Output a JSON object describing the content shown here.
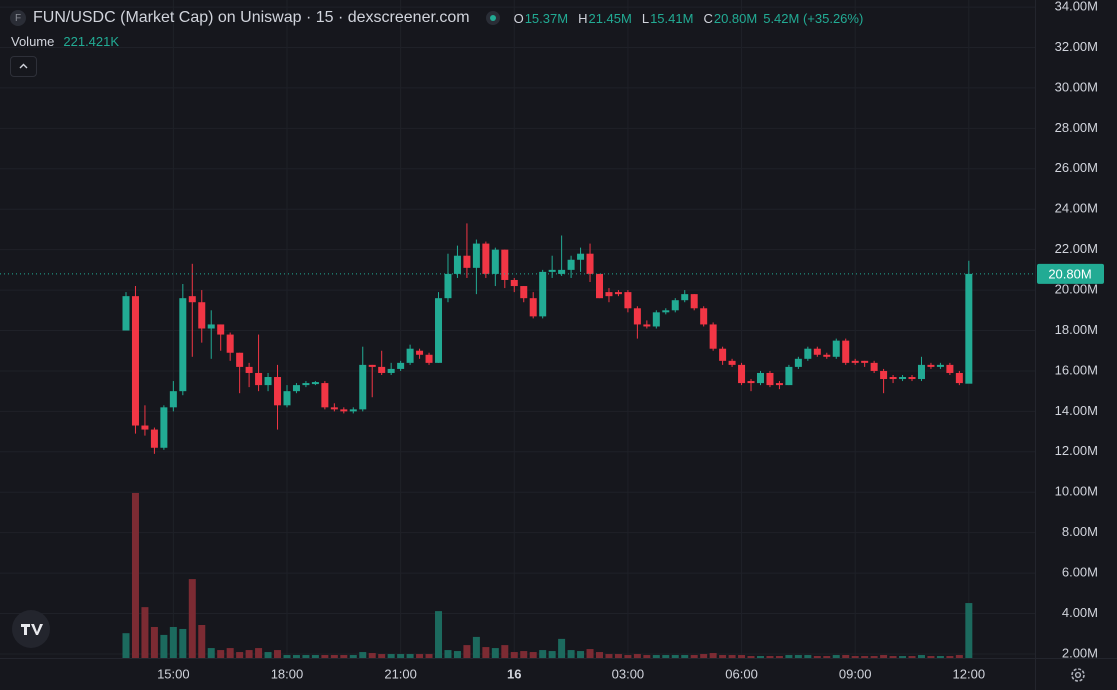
{
  "header": {
    "icon_letter": "F",
    "title": "FUN/USDC (Market Cap) on Uniswap · 15 · dexscreener.com",
    "stats": [
      {
        "label": "O",
        "value": "15.37M"
      },
      {
        "label": "H",
        "value": "21.45M"
      },
      {
        "label": "L",
        "value": "15.41M"
      },
      {
        "label": "C",
        "value": "20.80M"
      }
    ],
    "change": "5.42M (+35.26%)",
    "volume_label": "Volume",
    "volume_value": "221.421K"
  },
  "chart_data": {
    "type": "candlestick",
    "categories": [
      null,
      null,
      null,
      null,
      null,
      "15:00",
      null,
      null,
      null,
      null,
      null,
      null,
      null,
      null,
      null,
      null,
      null,
      "18:00",
      null,
      null,
      null,
      null,
      null,
      null,
      null,
      null,
      null,
      null,
      null,
      "21:00",
      null,
      null,
      null,
      null,
      null,
      null,
      null,
      null,
      null,
      null,
      null,
      "16",
      null,
      null,
      null,
      null,
      null,
      null,
      null,
      null,
      null,
      null,
      null,
      "03:00",
      null,
      null,
      null,
      null,
      null,
      null,
      null,
      null,
      null,
      null,
      null,
      "06:00",
      null,
      null,
      null,
      null,
      null,
      null,
      null,
      null,
      null,
      null,
      null,
      "09:00",
      null,
      null,
      null,
      null,
      null,
      null,
      null,
      null,
      null,
      null,
      null,
      "12:00"
    ],
    "open": [
      18000000.0,
      19700000.0,
      13300000.0,
      13100000.0,
      12200000.0,
      14200000.0,
      15000000.0,
      19700000.0,
      19400000.0,
      18100000.0,
      18300000.0,
      17800000.0,
      16900000.0,
      16200000.0,
      15900000.0,
      15300000.0,
      15700000.0,
      14300000.0,
      15000000.0,
      15300000.0,
      15350000.0,
      15400000.0,
      14200000.0,
      14100000.0,
      14000000.0,
      14100000.0,
      16300000.0,
      16200000.0,
      15900000.0,
      16100000.0,
      16400000.0,
      17000000.0,
      16800000.0,
      16400000.0,
      19600000.0,
      20800000.0,
      21700000.0,
      21100000.0,
      22300000.0,
      20800000.0,
      22000000.0,
      20500000.0,
      20200000.0,
      19600000.0,
      18700000.0,
      20900000.0,
      20800000.0,
      21000000.0,
      21500000.0,
      21800000.0,
      20800000.0,
      19900000.0,
      19900000.0,
      19900000.0,
      19100000.0,
      18300000.0,
      18200000.0,
      18900000.0,
      19000000.0,
      19500000.0,
      19800000.0,
      19100000.0,
      18300000.0,
      17100000.0,
      16500000.0,
      16300000.0,
      15500000.0,
      15400000.0,
      15900000.0,
      15400000.0,
      15300000.0,
      16200000.0,
      16600000.0,
      17100000.0,
      16800000.0,
      16700000.0,
      17500000.0,
      16500000.0,
      16500000.0,
      16400000.0,
      16000000.0,
      15700000.0,
      15600000.0,
      15700000.0,
      15600000.0,
      16300000.0,
      16200000.0,
      16300000.0,
      15900000.0,
      15370000.0
    ],
    "high": [
      19900000.0,
      20200000.0,
      14300000.0,
      13200000.0,
      14300000.0,
      15500000.0,
      20300000.0,
      21300000.0,
      20000000.0,
      19000000.0,
      18300000.0,
      17900000.0,
      16900000.0,
      16400000.0,
      17800000.0,
      15900000.0,
      16300000.0,
      15300000.0,
      15400000.0,
      15500000.0,
      15500000.0,
      15500000.0,
      14400000.0,
      14200000.0,
      14200000.0,
      17200000.0,
      16300000.0,
      17000000.0,
      16400000.0,
      16500000.0,
      17300000.0,
      17100000.0,
      16900000.0,
      19900000.0,
      21800000.0,
      22200000.0,
      23300000.0,
      22500000.0,
      22400000.0,
      22100000.0,
      22000000.0,
      20600000.0,
      20200000.0,
      19900000.0,
      21000000.0,
      21700000.0,
      22700000.0,
      21700000.0,
      22100000.0,
      22300000.0,
      20800000.0,
      20100000.0,
      20000000.0,
      20000000.0,
      19200000.0,
      18500000.0,
      19000000.0,
      19100000.0,
      19600000.0,
      20000000.0,
      19800000.0,
      19200000.0,
      18400000.0,
      17200000.0,
      16600000.0,
      16400000.0,
      15600000.0,
      16000000.0,
      16000000.0,
      15500000.0,
      16300000.0,
      16700000.0,
      17200000.0,
      17200000.0,
      16900000.0,
      17600000.0,
      17600000.0,
      16600000.0,
      16500000.0,
      16500000.0,
      16100000.0,
      15800000.0,
      15800000.0,
      15800000.0,
      16700000.0,
      16400000.0,
      16400000.0,
      16400000.0,
      16000000.0,
      21450000.0
    ],
    "low": [
      18000000.0,
      12900000.0,
      12800000.0,
      11900000.0,
      12100000.0,
      14000000.0,
      14800000.0,
      16700000.0,
      17400000.0,
      16600000.0,
      17000000.0,
      16500000.0,
      14900000.0,
      15200000.0,
      15000000.0,
      15000000.0,
      13100000.0,
      14200000.0,
      14900000.0,
      15200000.0,
      15300000.0,
      14100000.0,
      14000000.0,
      13900000.0,
      13900000.0,
      14000000.0,
      14700000.0,
      15800000.0,
      15800000.0,
      16000000.0,
      16300000.0,
      16600000.0,
      16300000.0,
      16400000.0,
      19400000.0,
      20600000.0,
      20600000.0,
      19800000.0,
      20600000.0,
      20200000.0,
      20100000.0,
      19900000.0,
      19400000.0,
      18600000.0,
      18600000.0,
      20600000.0,
      20700000.0,
      20600000.0,
      20900000.0,
      20400000.0,
      19600000.0,
      19400000.0,
      19700000.0,
      18900000.0,
      17600000.0,
      18100000.0,
      18100000.0,
      18800000.0,
      18900000.0,
      19400000.0,
      19000000.0,
      18200000.0,
      17000000.0,
      16300000.0,
      16200000.0,
      15300000.0,
      15000000.0,
      15300000.0,
      15200000.0,
      15100000.0,
      15300000.0,
      16100000.0,
      16500000.0,
      16700000.0,
      16600000.0,
      16600000.0,
      16300000.0,
      16300000.0,
      16200000.0,
      15900000.0,
      14900000.0,
      15400000.0,
      15500000.0,
      15500000.0,
      15500000.0,
      16100000.0,
      16100000.0,
      15800000.0,
      15300000.0,
      15410000.0
    ],
    "close": [
      19700000.0,
      13300000.0,
      13100000.0,
      12200000.0,
      14200000.0,
      15000000.0,
      19600000.0,
      19400000.0,
      18100000.0,
      18300000.0,
      17800000.0,
      16900000.0,
      16200000.0,
      15900000.0,
      15300000.0,
      15700000.0,
      14300000.0,
      15000000.0,
      15300000.0,
      15400000.0,
      15450000.0,
      14200000.0,
      14100000.0,
      14000000.0,
      14100000.0,
      16300000.0,
      16200000.0,
      15900000.0,
      16100000.0,
      16400000.0,
      17100000.0,
      16800000.0,
      16400000.0,
      19600000.0,
      20800000.0,
      21700000.0,
      21100000.0,
      22300000.0,
      20800000.0,
      22000000.0,
      20500000.0,
      20200000.0,
      19600000.0,
      18700000.0,
      20900000.0,
      21000000.0,
      21000000.0,
      21500000.0,
      21800000.0,
      20800000.0,
      19600000.0,
      19700000.0,
      19800000.0,
      19100000.0,
      18300000.0,
      18200000.0,
      18900000.0,
      19000000.0,
      19500000.0,
      19800000.0,
      19100000.0,
      18300000.0,
      17100000.0,
      16500000.0,
      16300000.0,
      15400000.0,
      15400000.0,
      15900000.0,
      15300000.0,
      15300000.0,
      16200000.0,
      16600000.0,
      17100000.0,
      16800000.0,
      16700000.0,
      17500000.0,
      16400000.0,
      16400000.0,
      16400000.0,
      16000000.0,
      15600000.0,
      15600000.0,
      15700000.0,
      15600000.0,
      16300000.0,
      16200000.0,
      16300000.0,
      15900000.0,
      15400000.0,
      20800000.0
    ],
    "volume": [
      100000.0,
      665000.0,
      205000.0,
      125000.0,
      93000.0,
      125000.0,
      117000.0,
      318000.0,
      133000.0,
      40000.0,
      32000.0,
      40000.0,
      24000.0,
      32000.0,
      40000.0,
      24000.0,
      32000.0,
      12000.0,
      12000.0,
      12000.0,
      12000.0,
      12000.0,
      12000.0,
      12000.0,
      12000.0,
      24000.0,
      20000.0,
      16000.0,
      16000.0,
      16000.0,
      16000.0,
      16000.0,
      16000.0,
      189000.0,
      32000.0,
      28000.0,
      52000.0,
      85000.0,
      44000.0,
      40000.0,
      52000.0,
      24000.0,
      28000.0,
      24000.0,
      32000.0,
      28000.0,
      77000.0,
      32000.0,
      28000.0,
      36000.0,
      24000.0,
      16000.0,
      16000.0,
      12000.0,
      16000.0,
      12000.0,
      12000.0,
      12000.0,
      12000.0,
      12000.0,
      12000.0,
      16000.0,
      20000.0,
      12000.0,
      12000.0,
      12000.0,
      8000.0,
      8000.0,
      8000.0,
      8000.0,
      12000.0,
      12000.0,
      12000.0,
      8000.0,
      8000.0,
      12000.0,
      12000.0,
      8000.0,
      8000.0,
      8000.0,
      12000.0,
      8000.0,
      8000.0,
      8000.0,
      12000.0,
      8000.0,
      8000.0,
      8000.0,
      12000.0,
      221421
    ],
    "up_color": "#22ab94",
    "down_color": "#f23645",
    "volume_up_color": "#1c6a5e",
    "volume_down_color": "#7c2b33",
    "ylim": [
      1800000.0,
      34350000.0
    ],
    "volume_ylim": [
      0,
      806000.0
    ],
    "yticks": [
      {
        "value": 2000000.0,
        "label": "2.00M"
      },
      {
        "value": 4000000.0,
        "label": "4.00M"
      },
      {
        "value": 6000000.0,
        "label": "6.00M"
      },
      {
        "value": 8000000.0,
        "label": "8.00M"
      },
      {
        "value": 10000000.0,
        "label": "10.00M"
      },
      {
        "value": 12000000.0,
        "label": "12.00M"
      },
      {
        "value": 14000000.0,
        "label": "14.00M"
      },
      {
        "value": 16000000.0,
        "label": "16.00M"
      },
      {
        "value": 18000000.0,
        "label": "18.00M"
      },
      {
        "value": 20000000.0,
        "label": "20.00M"
      },
      {
        "value": 22000000.0,
        "label": "22.00M"
      },
      {
        "value": 24000000.0,
        "label": "24.00M"
      },
      {
        "value": 26000000.0,
        "label": "26.00M"
      },
      {
        "value": 28000000.0,
        "label": "28.00M"
      },
      {
        "value": 30000000.0,
        "label": "30.00M"
      },
      {
        "value": 32000000.0,
        "label": "32.00M"
      },
      {
        "value": 34000000.0,
        "label": "34.00M"
      }
    ],
    "grid": true,
    "last_close_label": "20.80M"
  }
}
